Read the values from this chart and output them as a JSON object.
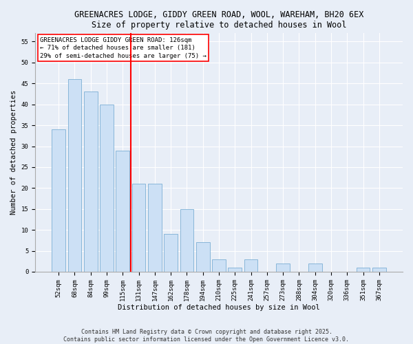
{
  "title1": "GREENACRES LODGE, GIDDY GREEN ROAD, WOOL, WAREHAM, BH20 6EX",
  "title2": "Size of property relative to detached houses in Wool",
  "xlabel": "Distribution of detached houses by size in Wool",
  "ylabel": "Number of detached properties",
  "categories": [
    "52sqm",
    "68sqm",
    "84sqm",
    "99sqm",
    "115sqm",
    "131sqm",
    "147sqm",
    "162sqm",
    "178sqm",
    "194sqm",
    "210sqm",
    "225sqm",
    "241sqm",
    "257sqm",
    "273sqm",
    "288sqm",
    "304sqm",
    "320sqm",
    "336sqm",
    "351sqm",
    "367sqm"
  ],
  "values": [
    34,
    46,
    43,
    40,
    29,
    21,
    21,
    9,
    15,
    7,
    3,
    1,
    3,
    0,
    2,
    0,
    2,
    0,
    0,
    1,
    1
  ],
  "bar_color": "#cce0f5",
  "bar_edge_color": "#7bafd4",
  "red_line_index": 5,
  "red_line_color": "red",
  "annotation_title": "GREENACRES LODGE GIDDY GREEN ROAD: 126sqm",
  "annotation_line1": "← 71% of detached houses are smaller (181)",
  "annotation_line2": "29% of semi-detached houses are larger (75) →",
  "annotation_box_color": "white",
  "annotation_box_edge": "red",
  "ylim": [
    0,
    57
  ],
  "yticks": [
    0,
    5,
    10,
    15,
    20,
    25,
    30,
    35,
    40,
    45,
    50,
    55
  ],
  "background_color": "#e8eef7",
  "plot_bg_color": "#e8eef7",
  "footer": "Contains HM Land Registry data © Crown copyright and database right 2025.\nContains public sector information licensed under the Open Government Licence v3.0.",
  "title_fontsize": 8.5,
  "subtitle_fontsize": 8,
  "axis_label_fontsize": 7.5,
  "tick_fontsize": 6.5,
  "annotation_fontsize": 6.5,
  "footer_fontsize": 6
}
